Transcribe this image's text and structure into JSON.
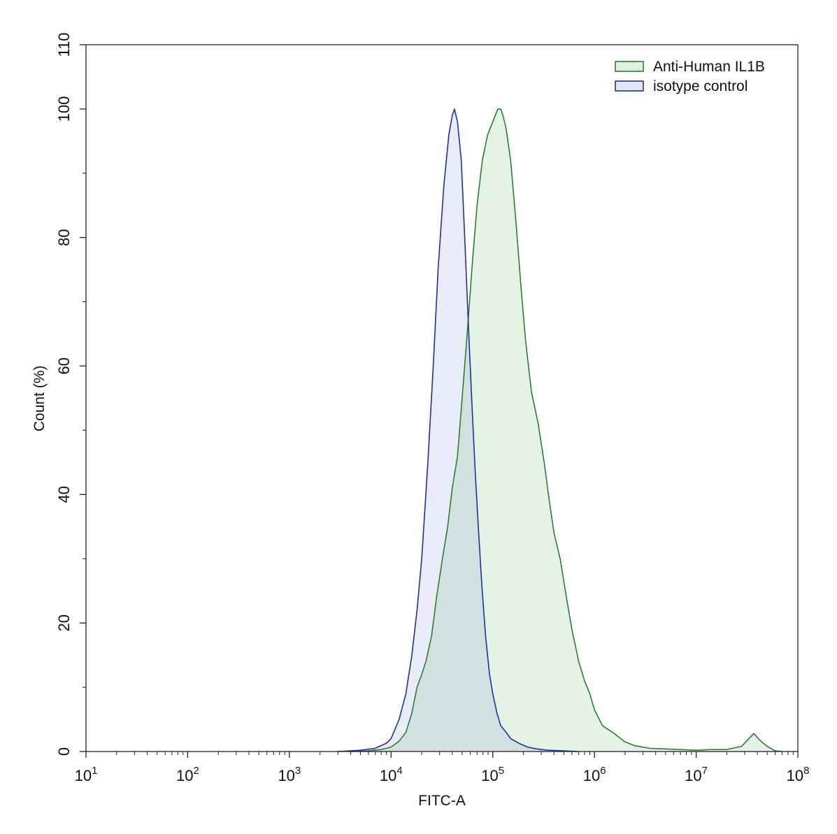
{
  "chart_data": {
    "type": "area",
    "title": "",
    "xlabel": "FITC-A",
    "ylabel": "Count  (%)",
    "xscale": "log",
    "xlim": [
      10,
      100000000
    ],
    "ylim": [
      0,
      110
    ],
    "x_ticks": [
      {
        "base": "10",
        "exp": "1"
      },
      {
        "base": "10",
        "exp": "2"
      },
      {
        "base": "10",
        "exp": "3"
      },
      {
        "base": "10",
        "exp": "4"
      },
      {
        "base": "10",
        "exp": "5"
      },
      {
        "base": "10",
        "exp": "6"
      },
      {
        "base": "10",
        "exp": "7"
      },
      {
        "base": "10",
        "exp": "8"
      }
    ],
    "y_ticks": [
      "0",
      "20",
      "40",
      "60",
      "80",
      "100",
      "110"
    ],
    "grid": false,
    "legend_position": "top-right",
    "series": [
      {
        "name": "Anti-Human IL1B",
        "stroke": "#2e7d32",
        "fill": "#e2f2e2",
        "points": [
          [
            4000,
            0
          ],
          [
            6000,
            0.1
          ],
          [
            8000,
            0.3
          ],
          [
            10000,
            0.7
          ],
          [
            12000,
            1.6
          ],
          [
            14000,
            3
          ],
          [
            16000,
            6
          ],
          [
            18000,
            10
          ],
          [
            20000,
            12
          ],
          [
            22000,
            14
          ],
          [
            25000,
            18
          ],
          [
            28000,
            24
          ],
          [
            32000,
            30
          ],
          [
            36000,
            35
          ],
          [
            40000,
            41
          ],
          [
            45000,
            46
          ],
          [
            50000,
            55
          ],
          [
            56000,
            65
          ],
          [
            63000,
            76
          ],
          [
            70000,
            85
          ],
          [
            79000,
            92
          ],
          [
            89000,
            96
          ],
          [
            100000,
            98
          ],
          [
            112000,
            100
          ],
          [
            120000,
            100
          ],
          [
            126000,
            99
          ],
          [
            135000,
            97
          ],
          [
            150000,
            92
          ],
          [
            170000,
            82
          ],
          [
            190000,
            72
          ],
          [
            210000,
            64
          ],
          [
            240000,
            56
          ],
          [
            280000,
            51
          ],
          [
            320000,
            45
          ],
          [
            360000,
            39
          ],
          [
            400000,
            34
          ],
          [
            460000,
            30
          ],
          [
            530000,
            24
          ],
          [
            600000,
            19
          ],
          [
            700000,
            14
          ],
          [
            800000,
            11
          ],
          [
            900000,
            9
          ],
          [
            1000000,
            6.5
          ],
          [
            1200000,
            4
          ],
          [
            1500000,
            3
          ],
          [
            2000000,
            1.5
          ],
          [
            2500000,
            0.9
          ],
          [
            3500000,
            0.5
          ],
          [
            5000000,
            0.4
          ],
          [
            7000000,
            0.3
          ],
          [
            10000000,
            0.2
          ],
          [
            14000000,
            0.3
          ],
          [
            20000000,
            0.3
          ],
          [
            28000000,
            0.8
          ],
          [
            33000000,
            2
          ],
          [
            37000000,
            2.8
          ],
          [
            42000000,
            1.8
          ],
          [
            50000000,
            0.8
          ],
          [
            60000000,
            0.1
          ],
          [
            70000000,
            0
          ]
        ]
      },
      {
        "name": "isotype control",
        "stroke": "#1f2fa8",
        "fill": "#e3e6f8",
        "points": [
          [
            3000,
            0
          ],
          [
            5000,
            0.2
          ],
          [
            7000,
            0.5
          ],
          [
            9000,
            1.3
          ],
          [
            10000,
            2
          ],
          [
            12000,
            5
          ],
          [
            14000,
            9
          ],
          [
            16000,
            15
          ],
          [
            18000,
            22
          ],
          [
            20000,
            30
          ],
          [
            23000,
            45
          ],
          [
            26000,
            60
          ],
          [
            29000,
            75
          ],
          [
            33000,
            88
          ],
          [
            37000,
            96
          ],
          [
            40000,
            99
          ],
          [
            42000,
            100
          ],
          [
            45000,
            98
          ],
          [
            49000,
            92
          ],
          [
            53000,
            80
          ],
          [
            57000,
            68
          ],
          [
            62000,
            55
          ],
          [
            67000,
            44
          ],
          [
            72000,
            35
          ],
          [
            78000,
            26
          ],
          [
            85000,
            18
          ],
          [
            93000,
            12
          ],
          [
            100000,
            9
          ],
          [
            110000,
            6
          ],
          [
            120000,
            4
          ],
          [
            135000,
            3
          ],
          [
            150000,
            2
          ],
          [
            180000,
            1.3
          ],
          [
            220000,
            0.7
          ],
          [
            270000,
            0.4
          ],
          [
            350000,
            0.2
          ],
          [
            500000,
            0.1
          ],
          [
            700000,
            0
          ]
        ]
      }
    ]
  }
}
